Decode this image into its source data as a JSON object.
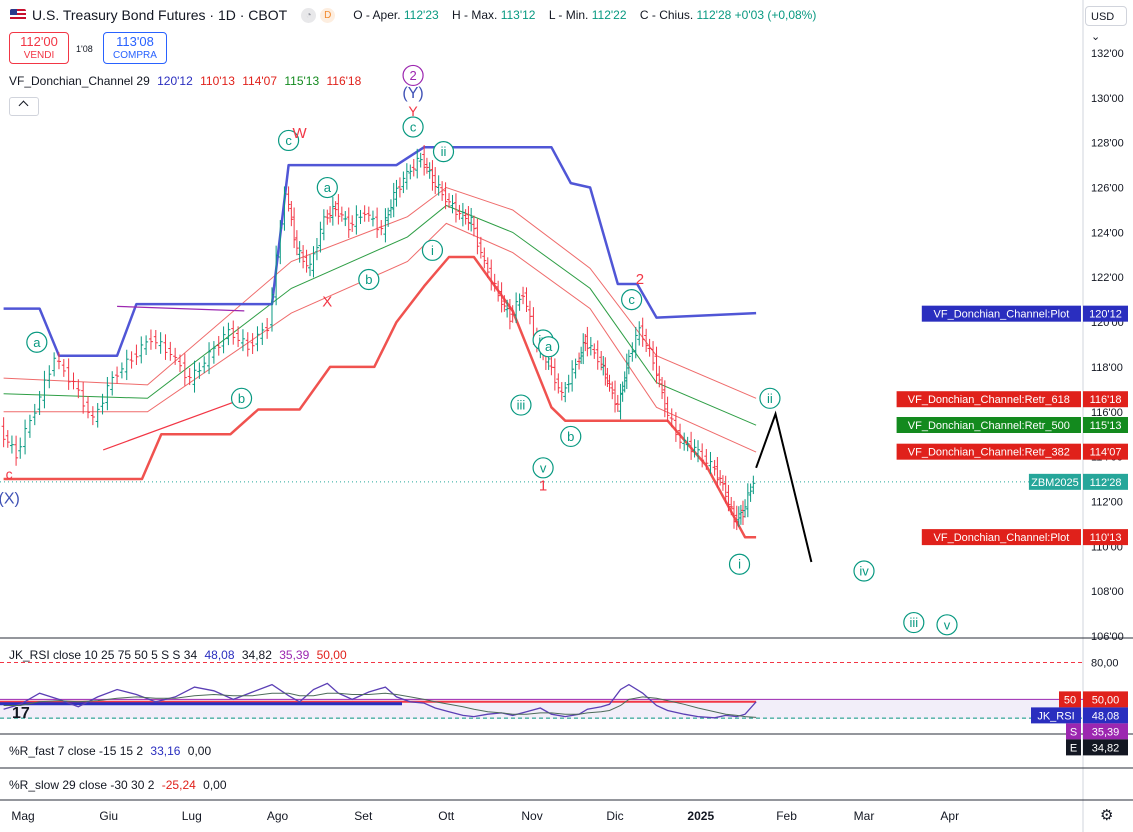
{
  "header": {
    "title": "U.S. Treasury Bond Futures · 1D · CBOT",
    "badges": [
      "D"
    ],
    "ohlc": {
      "o_label": "O - Aper.",
      "o": "112'23",
      "h_label": "H - Max.",
      "h": "113'12",
      "l_label": "L - Min.",
      "l": "112'22",
      "c_label": "C - Chius.",
      "c": "112'28",
      "change": "+0'03 (+0,08%)"
    },
    "currency": "USD"
  },
  "trade": {
    "sell_price": "112'00",
    "sell_label": "VENDI",
    "spread": "1'08",
    "buy_price": "113'08",
    "buy_label": "COMPRA"
  },
  "indicators": {
    "donchian": {
      "name": "VF_Donchian_Channel 29",
      "v1": "120'12",
      "v2": "110'13",
      "v3": "114'07",
      "v4": "115'13",
      "v5": "116'18"
    },
    "rsi": {
      "name": "JK_RSI close 10 25 75 50 5 S S 34",
      "v1": "48,08",
      "v2": "34,82",
      "v3": "35,39",
      "v4": "50,00"
    },
    "rfast": {
      "name": "%R_fast 7 close -15 15 2",
      "v1": "33,16",
      "v2": "0,00"
    },
    "rslow": {
      "name": "%R_slow 29 close -30 30 2",
      "v1": "-25,24",
      "v2": "0,00"
    }
  },
  "colors": {
    "up": "#089981",
    "down": "#f23645",
    "donchian_upper": "#5056d6",
    "donchian_lower": "#f0524f",
    "rsi_line": "#2a2ebf"
  },
  "chart_data": {
    "type": "line",
    "title": "U.S. Treasury Bond Futures · 1D · CBOT",
    "x_ticks": [
      "Mag",
      "Giu",
      "Lug",
      "Ago",
      "Set",
      "Ott",
      "Nov",
      "Dic",
      "2025",
      "Feb",
      "Mar",
      "Apr"
    ],
    "y_ticks": [
      "106'00",
      "108'00",
      "110'00",
      "112'00",
      "114'00",
      "116'00",
      "118'00",
      "120'00",
      "122'00",
      "124'00",
      "126'00",
      "128'00",
      "130'00",
      "132'00"
    ],
    "ylim": [
      106,
      133
    ],
    "x_range": [
      "2024-05-01",
      "2025-04-30"
    ],
    "dotted_price": 112.875,
    "price_series": {
      "name": "ZBM2025",
      "points": [
        [
          "2024-04-24",
          115.2
        ],
        [
          "2024-04-30",
          114.1
        ],
        [
          "2024-05-07",
          116.1
        ],
        [
          "2024-05-14",
          118.4
        ],
        [
          "2024-05-21",
          117.2
        ],
        [
          "2024-05-28",
          115.6
        ],
        [
          "2024-06-04",
          117.5
        ],
        [
          "2024-06-11",
          118.4
        ],
        [
          "2024-06-18",
          119.3
        ],
        [
          "2024-06-25",
          118.6
        ],
        [
          "2024-07-02",
          117.4
        ],
        [
          "2024-07-09",
          118.5
        ],
        [
          "2024-07-16",
          119.6
        ],
        [
          "2024-07-23",
          118.9
        ],
        [
          "2024-07-30",
          119.8
        ],
        [
          "2024-08-05",
          125.8
        ],
        [
          "2024-08-09",
          123.2
        ],
        [
          "2024-08-14",
          122.4
        ],
        [
          "2024-08-19",
          124.6
        ],
        [
          "2024-08-23",
          125.1
        ],
        [
          "2024-08-28",
          124.3
        ],
        [
          "2024-09-03",
          124.9
        ],
        [
          "2024-09-09",
          124.1
        ],
        [
          "2024-09-13",
          125.6
        ],
        [
          "2024-09-18",
          126.6
        ],
        [
          "2024-09-23",
          127.3
        ],
        [
          "2024-09-27",
          126.4
        ],
        [
          "2024-10-02",
          125.5
        ],
        [
          "2024-10-07",
          124.8
        ],
        [
          "2024-10-11",
          124.5
        ],
        [
          "2024-10-16",
          122.6
        ],
        [
          "2024-10-21",
          121.2
        ],
        [
          "2024-10-25",
          120.2
        ],
        [
          "2024-10-30",
          121.3
        ],
        [
          "2024-11-04",
          118.9
        ],
        [
          "2024-11-08",
          118.2
        ],
        [
          "2024-11-13",
          116.7
        ],
        [
          "2024-11-18",
          118.1
        ],
        [
          "2024-11-21",
          119.2
        ],
        [
          "2024-11-26",
          118.4
        ],
        [
          "2024-11-29",
          117.4
        ],
        [
          "2024-12-03",
          116.2
        ],
        [
          "2024-12-06",
          118.0
        ],
        [
          "2024-12-11",
          119.7
        ],
        [
          "2024-12-16",
          118.3
        ],
        [
          "2024-12-20",
          116.3
        ],
        [
          "2024-12-26",
          114.7
        ],
        [
          "2024-12-31",
          114.3
        ],
        [
          "2025-01-06",
          113.6
        ],
        [
          "2025-01-10",
          112.7
        ],
        [
          "2025-01-14",
          111.2
        ],
        [
          "2025-01-17",
          111.5
        ],
        [
          "2025-01-21",
          112.9
        ]
      ]
    },
    "donchian_upper": [
      [
        "2024-04-24",
        120.6
      ],
      [
        "2024-05-07",
        120.6
      ],
      [
        "2024-05-14",
        118.5
      ],
      [
        "2024-06-04",
        118.5
      ],
      [
        "2024-06-11",
        120.8
      ],
      [
        "2024-07-30",
        120.8
      ],
      [
        "2024-08-05",
        127.0
      ],
      [
        "2024-09-13",
        127.0
      ],
      [
        "2024-09-23",
        127.8
      ],
      [
        "2024-11-08",
        127.8
      ],
      [
        "2024-11-15",
        126.2
      ],
      [
        "2024-11-22",
        126.0
      ],
      [
        "2024-12-02",
        121.7
      ],
      [
        "2024-12-09",
        121.7
      ],
      [
        "2024-12-16",
        120.2
      ],
      [
        "2025-01-21",
        120.4
      ]
    ],
    "donchian_lower": [
      [
        "2024-04-24",
        113.0
      ],
      [
        "2024-06-13",
        113.0
      ],
      [
        "2024-06-20",
        115.0
      ],
      [
        "2024-07-15",
        115.0
      ],
      [
        "2024-07-25",
        116.1
      ],
      [
        "2024-08-09",
        116.1
      ],
      [
        "2024-08-20",
        118.0
      ],
      [
        "2024-09-05",
        118.0
      ],
      [
        "2024-09-13",
        120.0
      ],
      [
        "2024-09-23",
        121.6
      ],
      [
        "2024-10-02",
        122.9
      ],
      [
        "2024-10-11",
        122.9
      ],
      [
        "2024-10-25",
        120.5
      ],
      [
        "2024-11-08",
        116.2
      ],
      [
        "2024-11-13",
        115.6
      ],
      [
        "2024-12-20",
        115.6
      ],
      [
        "2025-01-03",
        113.6
      ],
      [
        "2025-01-17",
        110.4
      ],
      [
        "2025-01-21",
        110.4
      ]
    ],
    "retr_618": [
      [
        "2024-04-24",
        117.5
      ],
      [
        "2024-06-15",
        117.2
      ],
      [
        "2024-08-06",
        122.7
      ],
      [
        "2024-09-17",
        124.7
      ],
      [
        "2024-10-01",
        126.0
      ],
      [
        "2024-10-25",
        125.0
      ],
      [
        "2024-11-22",
        122.4
      ],
      [
        "2024-12-16",
        118.5
      ],
      [
        "2025-01-21",
        116.6
      ]
    ],
    "retr_500": [
      [
        "2024-04-24",
        116.8
      ],
      [
        "2024-06-15",
        116.6
      ],
      [
        "2024-08-06",
        121.5
      ],
      [
        "2024-09-17",
        123.8
      ],
      [
        "2024-10-01",
        125.2
      ],
      [
        "2024-10-25",
        124.0
      ],
      [
        "2024-11-22",
        121.5
      ],
      [
        "2024-12-16",
        117.3
      ],
      [
        "2025-01-21",
        115.4
      ]
    ],
    "retr_382": [
      [
        "2024-04-24",
        116.0
      ],
      [
        "2024-06-15",
        116.0
      ],
      [
        "2024-08-06",
        120.4
      ],
      [
        "2024-09-17",
        122.7
      ],
      [
        "2024-10-01",
        124.4
      ],
      [
        "2024-10-25",
        123.1
      ],
      [
        "2024-11-22",
        120.6
      ],
      [
        "2024-12-16",
        116.2
      ],
      [
        "2025-01-21",
        114.2
      ]
    ],
    "price_labels": [
      {
        "text": "VF_Donchian_Channel:Plot",
        "value": "120'12",
        "price": 120.375,
        "color": "#2a2ebf"
      },
      {
        "text": "VF_Donchian_Channel:Retr_618",
        "value": "116'18",
        "price": 116.56,
        "color": "#e0211b"
      },
      {
        "text": "VF_Donchian_Channel:Retr_500",
        "value": "115'13",
        "price": 115.41,
        "color": "#138a1e"
      },
      {
        "text": "VF_Donchian_Channel:Retr_382",
        "value": "114'07",
        "price": 114.22,
        "color": "#e0211b"
      },
      {
        "text": "ZBM2025",
        "value": "112'28",
        "price": 112.875,
        "color": "#26a69a"
      },
      {
        "text": "VF_Donchian_Channel:Plot",
        "value": "110'13",
        "price": 110.41,
        "color": "#e0211b"
      }
    ],
    "wave_labels": [
      {
        "text": "a",
        "d": "2024-05-06",
        "p": 119.1,
        "circle": true,
        "color": "#089981"
      },
      {
        "text": "b",
        "d": "2024-07-19",
        "p": 116.6,
        "circle": true,
        "color": "#089981"
      },
      {
        "text": "c",
        "d": "2024-08-05",
        "p": 128.1,
        "circle": true,
        "color": "#089981"
      },
      {
        "text": "a",
        "d": "2024-08-19",
        "p": 126.0,
        "circle": true,
        "color": "#089981"
      },
      {
        "text": "b",
        "d": "2024-09-03",
        "p": 121.9,
        "circle": true,
        "color": "#089981"
      },
      {
        "text": "c",
        "d": "2024-09-19",
        "p": 128.7,
        "circle": true,
        "color": "#089981"
      },
      {
        "text": "ii",
        "d": "2024-09-30",
        "p": 127.6,
        "circle": true,
        "color": "#089981"
      },
      {
        "text": "i",
        "d": "2024-09-26",
        "p": 123.2,
        "circle": true,
        "color": "#089981"
      },
      {
        "text": "iv",
        "d": "2024-11-05",
        "p": 119.2,
        "circle": true,
        "color": "#089981"
      },
      {
        "text": "a",
        "d": "2024-11-07",
        "p": 118.9,
        "circle": true,
        "color": "#089981"
      },
      {
        "text": "iii",
        "d": "2024-10-28",
        "p": 116.3,
        "circle": true,
        "color": "#089981"
      },
      {
        "text": "v",
        "d": "2024-11-05",
        "p": 113.5,
        "circle": true,
        "color": "#089981"
      },
      {
        "text": "b",
        "d": "2024-11-15",
        "p": 114.9,
        "circle": true,
        "color": "#089981"
      },
      {
        "text": "c",
        "d": "2024-12-07",
        "p": 121.0,
        "circle": true,
        "color": "#089981"
      },
      {
        "text": "i",
        "d": "2025-01-15",
        "p": 109.2,
        "circle": true,
        "color": "#089981"
      },
      {
        "text": "ii",
        "d": "2025-01-26",
        "p": 116.6,
        "circle": true,
        "color": "#089981"
      },
      {
        "text": "iv",
        "d": "2025-02-29",
        "p": 108.9,
        "circle": true,
        "color": "#089981"
      },
      {
        "text": "iii",
        "d": "2025-03-19",
        "p": 106.6,
        "circle": true,
        "color": "#089981"
      },
      {
        "text": "v",
        "d": "2025-03-31",
        "p": 106.5,
        "circle": true,
        "color": "#089981"
      },
      {
        "text": "2",
        "d": "2024-09-19",
        "p": 131.0,
        "circle": true,
        "color": "#9c27b0"
      },
      {
        "text": "(Y)",
        "d": "2024-09-19",
        "p": 130.2,
        "circle": false,
        "color": "#3f51b5",
        "size": 16
      },
      {
        "text": "Y",
        "d": "2024-09-19",
        "p": 129.4,
        "circle": false,
        "color": "#f23645",
        "size": 14
      },
      {
        "text": "W",
        "d": "2024-08-09",
        "p": 128.4,
        "circle": false,
        "color": "#f23645",
        "size": 15
      },
      {
        "text": "X",
        "d": "2024-08-19",
        "p": 120.9,
        "circle": false,
        "color": "#f23645",
        "size": 15
      },
      {
        "text": "2",
        "d": "2024-12-10",
        "p": 121.9,
        "circle": false,
        "color": "#f23645",
        "size": 15
      },
      {
        "text": "1",
        "d": "2024-11-05",
        "p": 112.7,
        "circle": false,
        "color": "#f23645",
        "size": 15
      },
      {
        "text": "(X)",
        "d": "2024-04-26",
        "p": 112.1,
        "circle": false,
        "color": "#3f51b5",
        "size": 16
      },
      {
        "text": "c",
        "d": "2024-04-26",
        "p": 113.2,
        "circle": false,
        "color": "#f23645",
        "size": 14
      }
    ],
    "projection": [
      [
        "2025-01-21",
        113.5
      ],
      [
        "2025-01-28",
        115.9
      ],
      [
        "2025-02-10",
        109.3
      ]
    ],
    "trendlines": [
      {
        "points": [
          [
            "2024-05-30",
            114.3
          ],
          [
            "2024-07-20",
            116.6
          ]
        ],
        "color": "#f23645"
      },
      {
        "points": [
          [
            "2024-06-04",
            120.7
          ],
          [
            "2024-07-20",
            120.5
          ]
        ],
        "color": "#9c27b0"
      }
    ],
    "rsi": {
      "name": "JK_RSI",
      "levels": [
        80,
        50,
        48.08,
        35.39,
        34.82
      ],
      "level_labels": [
        "80,00",
        "50,00",
        "48,08",
        "35,39",
        "34,82"
      ],
      "ylim": [
        30,
        82
      ],
      "series": [
        {
          "name": "RSI",
          "values": [
            42,
            46,
            55,
            50,
            44,
            52,
            58,
            54,
            48,
            52,
            60,
            57,
            50,
            56,
            62,
            53,
            48,
            58,
            63,
            55,
            50,
            56,
            60,
            52,
            48,
            47,
            43,
            40,
            37,
            36,
            38,
            39,
            37,
            40,
            43,
            38,
            36,
            38,
            42,
            44,
            46,
            58,
            62,
            55,
            45,
            41,
            38,
            36,
            35,
            37,
            36,
            38,
            48
          ]
        },
        {
          "name": "Signal",
          "values": [
            45,
            45,
            48,
            49,
            48,
            49,
            51,
            52,
            51,
            51,
            53,
            54,
            53,
            53,
            55,
            55,
            53,
            53,
            55,
            55,
            54,
            54,
            55,
            54,
            52,
            50,
            48,
            46,
            44,
            42,
            40,
            39,
            38,
            38,
            39,
            39,
            38,
            38,
            39,
            40,
            41,
            45,
            50,
            52,
            51,
            49,
            46,
            43,
            40,
            38,
            37,
            36,
            35.4
          ]
        }
      ]
    }
  }
}
